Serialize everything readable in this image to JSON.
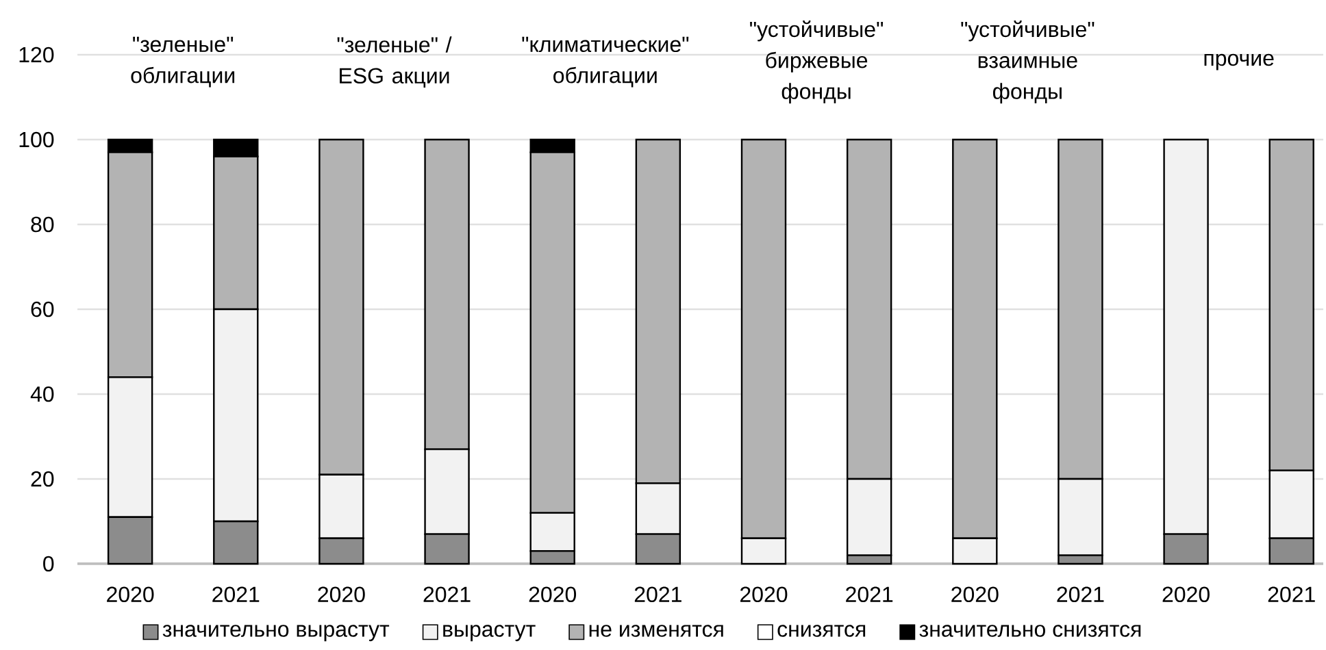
{
  "chart_data": {
    "type": "bar",
    "stacked": true,
    "categories": [
      "2020",
      "2021",
      "2020",
      "2021",
      "2020",
      "2021",
      "2020",
      "2021",
      "2020",
      "2021",
      "2020",
      "2021"
    ],
    "series": [
      {
        "name": "значительно вырастут",
        "color": "#8c8c8c",
        "values": [
          11,
          10,
          6,
          7,
          3,
          7,
          0,
          2,
          0,
          2,
          7,
          6
        ]
      },
      {
        "name": "вырастут",
        "color": "#f2f2f2",
        "values": [
          33,
          50,
          15,
          20,
          9,
          12,
          6,
          18,
          6,
          18,
          93,
          16
        ]
      },
      {
        "name": "не изменятся",
        "color": "#b3b3b3",
        "values": [
          53,
          36,
          79,
          73,
          85,
          81,
          94,
          80,
          94,
          80,
          0,
          78
        ]
      },
      {
        "name": "снизятся",
        "color": "#ffffff",
        "values": [
          0,
          0,
          0,
          0,
          0,
          0,
          0,
          0,
          0,
          0,
          0,
          0
        ]
      },
      {
        "name": "значительно снизятся",
        "color": "#000000",
        "values": [
          3,
          4,
          0,
          0,
          3,
          0,
          0,
          0,
          0,
          0,
          0,
          0
        ]
      }
    ],
    "ylim": [
      0,
      120
    ],
    "yticks": [
      0,
      20,
      40,
      60,
      80,
      100,
      120
    ],
    "grid": "y",
    "legend": "bottom",
    "annotations": [
      "\"зеленые\" облигации",
      "\"зеленые\" / ESG акции",
      "\"климатические\" облигации",
      "\"устойчивые\" биржевые фонды",
      "\"устойчивые\" взаимные фонды",
      "прочие"
    ]
  }
}
